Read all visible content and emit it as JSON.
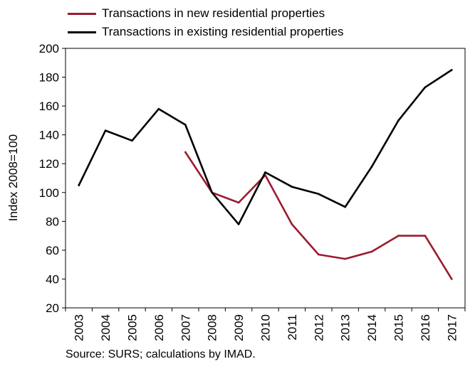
{
  "chart_data": {
    "type": "line",
    "categories": [
      "2003",
      "2004",
      "2005",
      "2006",
      "2007",
      "2008",
      "2009",
      "2010",
      "2011",
      "2012",
      "2013",
      "2014",
      "2015",
      "2016",
      "2017"
    ],
    "series": [
      {
        "name": "Transactions in new residential properties",
        "color": "#9b1b30",
        "values": [
          null,
          null,
          null,
          null,
          128,
          100,
          93,
          112,
          78,
          57,
          54,
          59,
          70,
          70,
          40
        ]
      },
      {
        "name": "Transactions in existing residential properties",
        "color": "#000000",
        "values": [
          105,
          143,
          136,
          158,
          147,
          100,
          78,
          114,
          104,
          99,
          90,
          118,
          150,
          173,
          185
        ]
      }
    ],
    "ylabel": "Index 2008=100",
    "xlabel": "",
    "ylim": [
      20,
      200
    ],
    "yticks": [
      20,
      40,
      60,
      80,
      100,
      120,
      140,
      160,
      180,
      200
    ],
    "grid": false,
    "legend_position": "top-left"
  },
  "source": "Source: SURS; calculations by IMAD."
}
